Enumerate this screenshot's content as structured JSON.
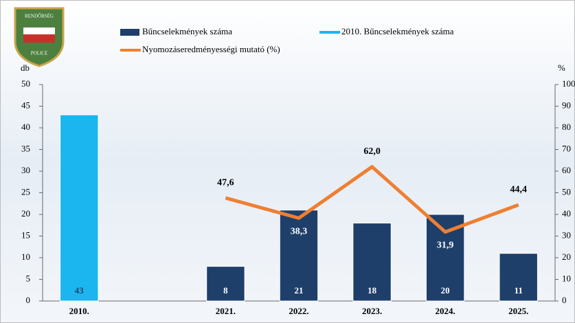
{
  "chart_data": {
    "type": "bar",
    "logo": {
      "top": "RENDŐRSÉG",
      "bottom": "POLICE"
    },
    "ylabel": "db",
    "y2label": "%",
    "categories": [
      "2010.",
      null,
      "2021.",
      "2022.",
      "2023.",
      "2024.",
      "2025."
    ],
    "series": [
      {
        "name": "Bűncselekmények száma",
        "color": "#1f3f6b",
        "type": "bar",
        "values": [
          null,
          null,
          8,
          21,
          18,
          20,
          11
        ]
      },
      {
        "name": "2010. Bűncselekmények száma",
        "color": "#1bb6ef",
        "type": "bar",
        "values": [
          43,
          null,
          null,
          null,
          null,
          null,
          null
        ]
      },
      {
        "name": "Nyomozáseredményességi mutató (%)",
        "color": "#ef7f32",
        "type": "line",
        "axis": "y2",
        "values": [
          null,
          null,
          47.6,
          38.3,
          62.0,
          31.9,
          44.4
        ],
        "value_labels": [
          null,
          null,
          "47,6",
          "38,3",
          "62,0",
          "31,9",
          "44,4"
        ]
      }
    ],
    "ylim": [
      0,
      50
    ],
    "yticks": [
      0,
      5,
      10,
      15,
      20,
      25,
      30,
      35,
      40,
      45,
      50
    ],
    "y2lim": [
      0,
      100
    ],
    "y2ticks": [
      0,
      10,
      20,
      30,
      40,
      50,
      60,
      70,
      80,
      90,
      100
    ]
  }
}
